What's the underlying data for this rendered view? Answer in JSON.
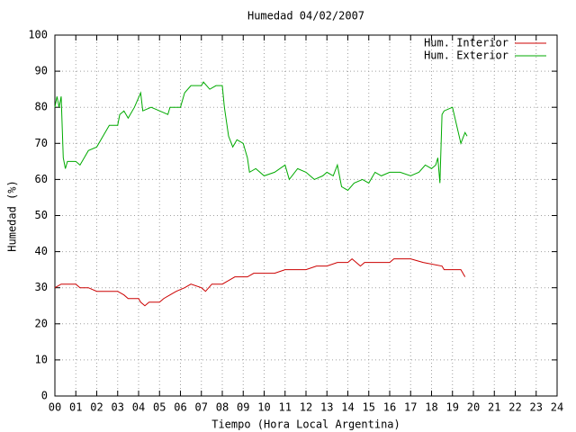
{
  "chart_data": {
    "type": "line",
    "title": "Humedad 04/02/2007",
    "x_label": "Tiempo (Hora Local Argentina)",
    "y_label": "Humedad (%)",
    "xlim": [
      0,
      24
    ],
    "ylim": [
      0,
      100
    ],
    "xticks": [
      {
        "value": 0,
        "label": "00"
      },
      {
        "value": 1,
        "label": "01"
      },
      {
        "value": 2,
        "label": "02"
      },
      {
        "value": 3,
        "label": "03"
      },
      {
        "value": 4,
        "label": "04"
      },
      {
        "value": 5,
        "label": "05"
      },
      {
        "value": 6,
        "label": "06"
      },
      {
        "value": 7,
        "label": "07"
      },
      {
        "value": 8,
        "label": "08"
      },
      {
        "value": 9,
        "label": "09"
      },
      10,
      11,
      12,
      13,
      14,
      15,
      16,
      17,
      18,
      19,
      20,
      21,
      22,
      23,
      24
    ],
    "yticks": [
      0,
      10,
      20,
      30,
      40,
      50,
      60,
      70,
      80,
      90,
      100
    ],
    "grid": true,
    "legend": "top-right",
    "series": [
      {
        "name": "Hum. Interior",
        "color": "#cc0000",
        "x": [
          0,
          0.3,
          1.0,
          1.2,
          1.6,
          2.0,
          3.0,
          3.3,
          3.5,
          4.0,
          4.1,
          4.3,
          4.5,
          5.0,
          5.2,
          5.5,
          5.8,
          6.2,
          6.5,
          7.0,
          7.2,
          7.5,
          8.0,
          8.3,
          8.6,
          9.2,
          9.5,
          10.5,
          11.0,
          12.0,
          12.5,
          13.0,
          13.5,
          14.0,
          14.2,
          14.4,
          14.6,
          14.8,
          16.0,
          16.2,
          17.0,
          17.6,
          18.5,
          18.6,
          19.0,
          19.4,
          19.6
        ],
        "values": [
          30,
          31,
          31,
          30,
          30,
          29,
          29,
          28,
          27,
          27,
          26,
          25,
          26,
          26,
          27,
          28,
          29,
          30,
          31,
          30,
          29,
          31,
          31,
          32,
          33,
          33,
          34,
          34,
          35,
          35,
          36,
          36,
          37,
          37,
          38,
          37,
          36,
          37,
          37,
          38,
          38,
          37,
          36,
          35,
          35,
          35,
          33
        ]
      },
      {
        "name": "Hum. Exterior",
        "color": "#00aa00",
        "x": [
          0,
          0.1,
          0.2,
          0.3,
          0.4,
          0.5,
          0.6,
          1.0,
          1.2,
          1.4,
          1.6,
          2.0,
          2.3,
          2.6,
          3.0,
          3.1,
          3.3,
          3.5,
          3.8,
          4.1,
          4.2,
          4.6,
          5.0,
          5.4,
          5.5,
          6.0,
          6.2,
          6.5,
          7.0,
          7.1,
          7.4,
          7.7,
          8.0,
          8.1,
          8.3,
          8.5,
          8.7,
          9.0,
          9.2,
          9.3,
          9.6,
          10.0,
          10.5,
          11.0,
          11.2,
          11.6,
          12.0,
          12.4,
          12.8,
          13.0,
          13.3,
          13.5,
          13.7,
          14.0,
          14.3,
          14.7,
          15.0,
          15.3,
          15.6,
          16.0,
          16.5,
          17.0,
          17.4,
          17.7,
          18.0,
          18.2,
          18.3,
          18.4,
          18.5,
          18.6,
          19.0,
          19.2,
          19.4,
          19.6,
          19.7
        ],
        "values": [
          80,
          83,
          80,
          83,
          66,
          63,
          65,
          65,
          64,
          66,
          68,
          69,
          72,
          75,
          75,
          78,
          79,
          77,
          80,
          84,
          79,
          80,
          79,
          78,
          80,
          80,
          84,
          86,
          86,
          87,
          85,
          86,
          86,
          80,
          72,
          69,
          71,
          70,
          66,
          62,
          63,
          61,
          62,
          64,
          60,
          63,
          62,
          60,
          61,
          62,
          61,
          64,
          58,
          57,
          59,
          60,
          59,
          62,
          61,
          62,
          62,
          61,
          62,
          64,
          63,
          64,
          66,
          59,
          78,
          79,
          80,
          75,
          70,
          73,
          72
        ]
      }
    ]
  }
}
